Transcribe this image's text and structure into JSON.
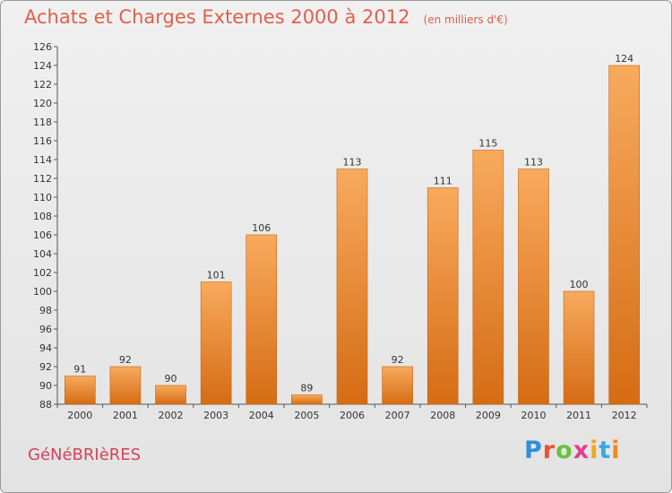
{
  "header": {
    "title": "Achats et Charges Externes 2000 à 2012",
    "subtitle": "(en milliers d'€)"
  },
  "footer": {
    "commune": "GéNéBRIèRES",
    "logo_letters": [
      "P",
      "r",
      "o",
      "x",
      "i",
      "t",
      "i"
    ],
    "logo_colors": [
      "#2f8fd8",
      "#e9542e",
      "#6cbf3c",
      "#e23d8e",
      "#f3a51e",
      "#39a9df",
      "#f08a1c"
    ]
  },
  "colors": {
    "title": "#e0604a",
    "bar_light": "#f8aa5d",
    "bar_dark": "#d56c14",
    "axis": "#555555"
  },
  "chart_data": {
    "type": "bar",
    "title": "Achats et Charges Externes 2000 à 2012",
    "subtitle": "(en milliers d'€)",
    "categories": [
      "2000",
      "2001",
      "2002",
      "2003",
      "2004",
      "2005",
      "2006",
      "2007",
      "2008",
      "2009",
      "2010",
      "2011",
      "2012"
    ],
    "values": [
      91,
      92,
      90,
      101,
      106,
      89,
      113,
      92,
      111,
      115,
      113,
      100,
      124
    ],
    "ylim": [
      88,
      126
    ],
    "yticks": [
      88,
      90,
      92,
      94,
      96,
      98,
      100,
      102,
      104,
      106,
      108,
      110,
      112,
      114,
      116,
      118,
      120,
      122,
      124,
      126
    ],
    "grid": false,
    "xlabel": "",
    "ylabel": ""
  }
}
